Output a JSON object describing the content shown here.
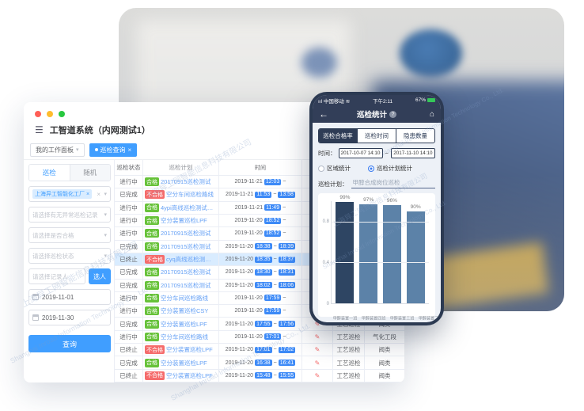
{
  "watermark": {
    "cn": "上海异工网智能信息科技有限公司",
    "en": "Shanghai Inroad Information Technology Co., Ltd."
  },
  "window": {
    "title": "工智道系统（内网测试1）",
    "workspace_tab": "我的工作面板",
    "active_tab": "巡检查询",
    "sidebar": {
      "tabs": [
        "巡检",
        "随机"
      ],
      "factory_tag": "上海异工智能化工厂",
      "selects": [
        "请选择有无异常巡检记录",
        "请选择是否合格",
        "请选择巡检状态"
      ],
      "recorder_placeholder": "请选择记录人",
      "pick_person_label": "选人",
      "date_from": "2019-11-01",
      "date_to": "2019-11-30",
      "search_label": "查询"
    },
    "table": {
      "headers": [
        "巡检状态",
        "巡检计划",
        "时间",
        "",
        "",
        ""
      ],
      "rows": [
        {
          "status": "进行中",
          "result": "合格",
          "plan": "20170915巡检测试",
          "date": "2019-11-21",
          "start": "12:03",
          "end": "",
          "type": "",
          "area": "",
          "highlight": false
        },
        {
          "status": "已完成",
          "result": "不合格",
          "plan": "空分车间巡检路线",
          "date": "2019-11-21",
          "start": "11:53",
          "end": "13:58",
          "type": "",
          "area": "",
          "highlight": false
        },
        {
          "status": "进行中",
          "result": "合格",
          "plan": "4ypi高线巡检测试计划",
          "date": "2019-11-21",
          "start": "11:49",
          "end": "",
          "type": "",
          "area": "",
          "highlight": false
        },
        {
          "status": "进行中",
          "result": "合格",
          "plan": "空分装置巡检LPF",
          "date": "2019-11-20",
          "start": "18:52",
          "end": "",
          "type": "",
          "area": "",
          "highlight": false
        },
        {
          "status": "进行中",
          "result": "合格",
          "plan": "20170915巡检测试",
          "date": "2019-11-20",
          "start": "18:52",
          "end": "",
          "type": "",
          "area": "",
          "highlight": false
        },
        {
          "status": "已完成",
          "result": "合格",
          "plan": "20170915巡检测试",
          "date": "2019-11-20",
          "start": "18:38",
          "end": "18:39",
          "type": "",
          "area": "",
          "highlight": false
        },
        {
          "status": "已终止",
          "result": "不合格",
          "plan": "cyq高线巡检测试计划",
          "date": "2019-11-20",
          "start": "18:35",
          "end": "18:37",
          "type": "",
          "area": "",
          "highlight": true
        },
        {
          "status": "已完成",
          "result": "合格",
          "plan": "20170915巡检测试",
          "date": "2019-11-20",
          "start": "18:30",
          "end": "18:31",
          "type": "",
          "area": "",
          "highlight": false
        },
        {
          "status": "已完成",
          "result": "合格",
          "plan": "20170915巡检测试",
          "date": "2019-11-20",
          "start": "18:02",
          "end": "18:06",
          "type": "",
          "area": "",
          "highlight": false
        },
        {
          "status": "进行中",
          "result": "合格",
          "plan": "空分车间巡检路线",
          "date": "2019-11-20",
          "start": "17:59",
          "end": "",
          "type": "",
          "area": "",
          "highlight": false
        },
        {
          "status": "进行中",
          "result": "合格",
          "plan": "空分装置巡检CSY",
          "date": "2019-11-20",
          "start": "17:59",
          "end": "",
          "type": "",
          "area": "",
          "highlight": false
        },
        {
          "status": "已完成",
          "result": "合格",
          "plan": "空分装置巡检LPF",
          "date": "2019-11-20",
          "start": "17:55",
          "end": "17:56",
          "type": "工艺巡检",
          "area": "阀类",
          "highlight": false
        },
        {
          "status": "进行中",
          "result": "合格",
          "plan": "空分车间巡检路线",
          "date": "2019-11-20",
          "start": "17:01",
          "end": "",
          "type": "工艺巡检",
          "area": "气化工段",
          "highlight": false
        },
        {
          "status": "已终止",
          "result": "不合格",
          "plan": "空分装置巡检LPF",
          "date": "2019-11-20",
          "start": "17:01",
          "end": "17:02",
          "type": "工艺巡检",
          "area": "阀类",
          "highlight": false
        },
        {
          "status": "已完成",
          "result": "合格",
          "plan": "空分装置巡检LPF",
          "date": "2019-11-20",
          "start": "16:38",
          "end": "16:41",
          "type": "工艺巡检",
          "area": "阀类",
          "highlight": false
        },
        {
          "status": "已终止",
          "result": "不合格",
          "plan": "空分装置巡检LPF",
          "date": "2019-11-20",
          "start": "15:48",
          "end": "15:55",
          "type": "工艺巡检",
          "area": "阀类",
          "highlight": false
        }
      ]
    }
  },
  "phone": {
    "status_bar": {
      "carrier": "中国移动",
      "time": "下午2:11",
      "battery": "67%"
    },
    "nav": {
      "title": "巡检统计"
    },
    "segments": [
      "巡检合格率",
      "巡检时间",
      "隐患数量"
    ],
    "active_segment": 0,
    "time_label": "时间：",
    "time_from": "2017-10-07 14:10",
    "time_to": "2017-11-10 14:10",
    "time_separator": "~",
    "radios": [
      {
        "label": "区域统计",
        "selected": false
      },
      {
        "label": "巡检计划统计",
        "selected": true
      }
    ],
    "plan_label": "巡检计划：",
    "plan_value": "甲醇合成岗位巡检"
  },
  "chart_data": {
    "type": "bar",
    "title": "",
    "categories": [
      "甲醇装置一班",
      "甲醇装置四班",
      "甲醇装置三班",
      "甲醇装置二班"
    ],
    "values": [
      99,
      97,
      96,
      90
    ],
    "value_labels": [
      "99%",
      "97%",
      "96%",
      "90%"
    ],
    "bar_colors": [
      "#2e4563",
      "#5c82a8",
      "#5c82a8",
      "#5c82a8"
    ],
    "xlabel": "",
    "ylabel": "",
    "ylim": [
      0,
      100
    ],
    "yticks": [
      0,
      40,
      80
    ],
    "ytick_labels": [
      "0",
      "0.4",
      "0.8"
    ],
    "grid": true,
    "legend_position": "none"
  },
  "icons": {
    "hamburger": "☰",
    "caret": "▾",
    "close": "×",
    "back": "←",
    "home": "⌂",
    "question": "?",
    "edit": "✎",
    "tilde": "~",
    "wifi": "≋",
    "signal": "ııl"
  },
  "colors": {
    "accent_blue": "#409eff",
    "time_chip_blue": "#3d8af7",
    "ok_green": "#67c23a",
    "bad_red": "#f56c6c",
    "phone_navy": "#2e3c55",
    "highlight_row": "#d9ecff"
  }
}
